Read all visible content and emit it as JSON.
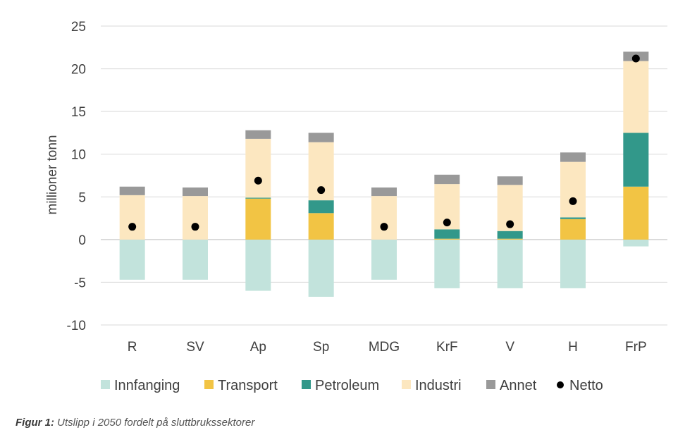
{
  "chart_data": {
    "type": "bar",
    "stacked": true,
    "categories": [
      "R",
      "SV",
      "Ap",
      "Sp",
      "MDG",
      "KrF",
      "V",
      "H",
      "FrP"
    ],
    "series": [
      {
        "name": "Innfanging",
        "color": "#c2e3dc",
        "values": [
          -4.7,
          -4.7,
          -6.0,
          -6.7,
          -4.7,
          -5.7,
          -5.7,
          -5.7,
          -0.8
        ]
      },
      {
        "name": "Transport",
        "color": "#f2c444",
        "values": [
          0,
          0,
          4.8,
          3.1,
          0,
          0.1,
          0.1,
          2.4,
          6.2
        ]
      },
      {
        "name": "Petroleum",
        "color": "#32988a",
        "values": [
          0,
          0,
          0.1,
          1.5,
          0,
          1.1,
          0.9,
          0.2,
          6.3
        ]
      },
      {
        "name": "Industri",
        "color": "#fce7c0",
        "values": [
          5.2,
          5.1,
          6.9,
          6.8,
          5.1,
          5.3,
          5.4,
          6.5,
          8.4
        ]
      },
      {
        "name": "Annet",
        "color": "#999999",
        "values": [
          1.0,
          1.0,
          1.0,
          1.1,
          1.0,
          1.1,
          1.0,
          1.1,
          1.1
        ]
      }
    ],
    "netto": {
      "name": "Netto",
      "color": "#000000",
      "values": [
        1.5,
        1.5,
        6.9,
        5.8,
        1.5,
        2.0,
        1.8,
        4.5,
        21.2
      ]
    },
    "ylabel": "millioner tonn",
    "ylim": [
      -10,
      25
    ],
    "yticks": [
      -10,
      -5,
      0,
      5,
      10,
      15,
      20,
      25
    ],
    "grid": true,
    "legend_position": "bottom"
  },
  "caption": {
    "label": "Figur 1:",
    "text": "Utslipp i 2050 fordelt på sluttbrukssektorer"
  }
}
